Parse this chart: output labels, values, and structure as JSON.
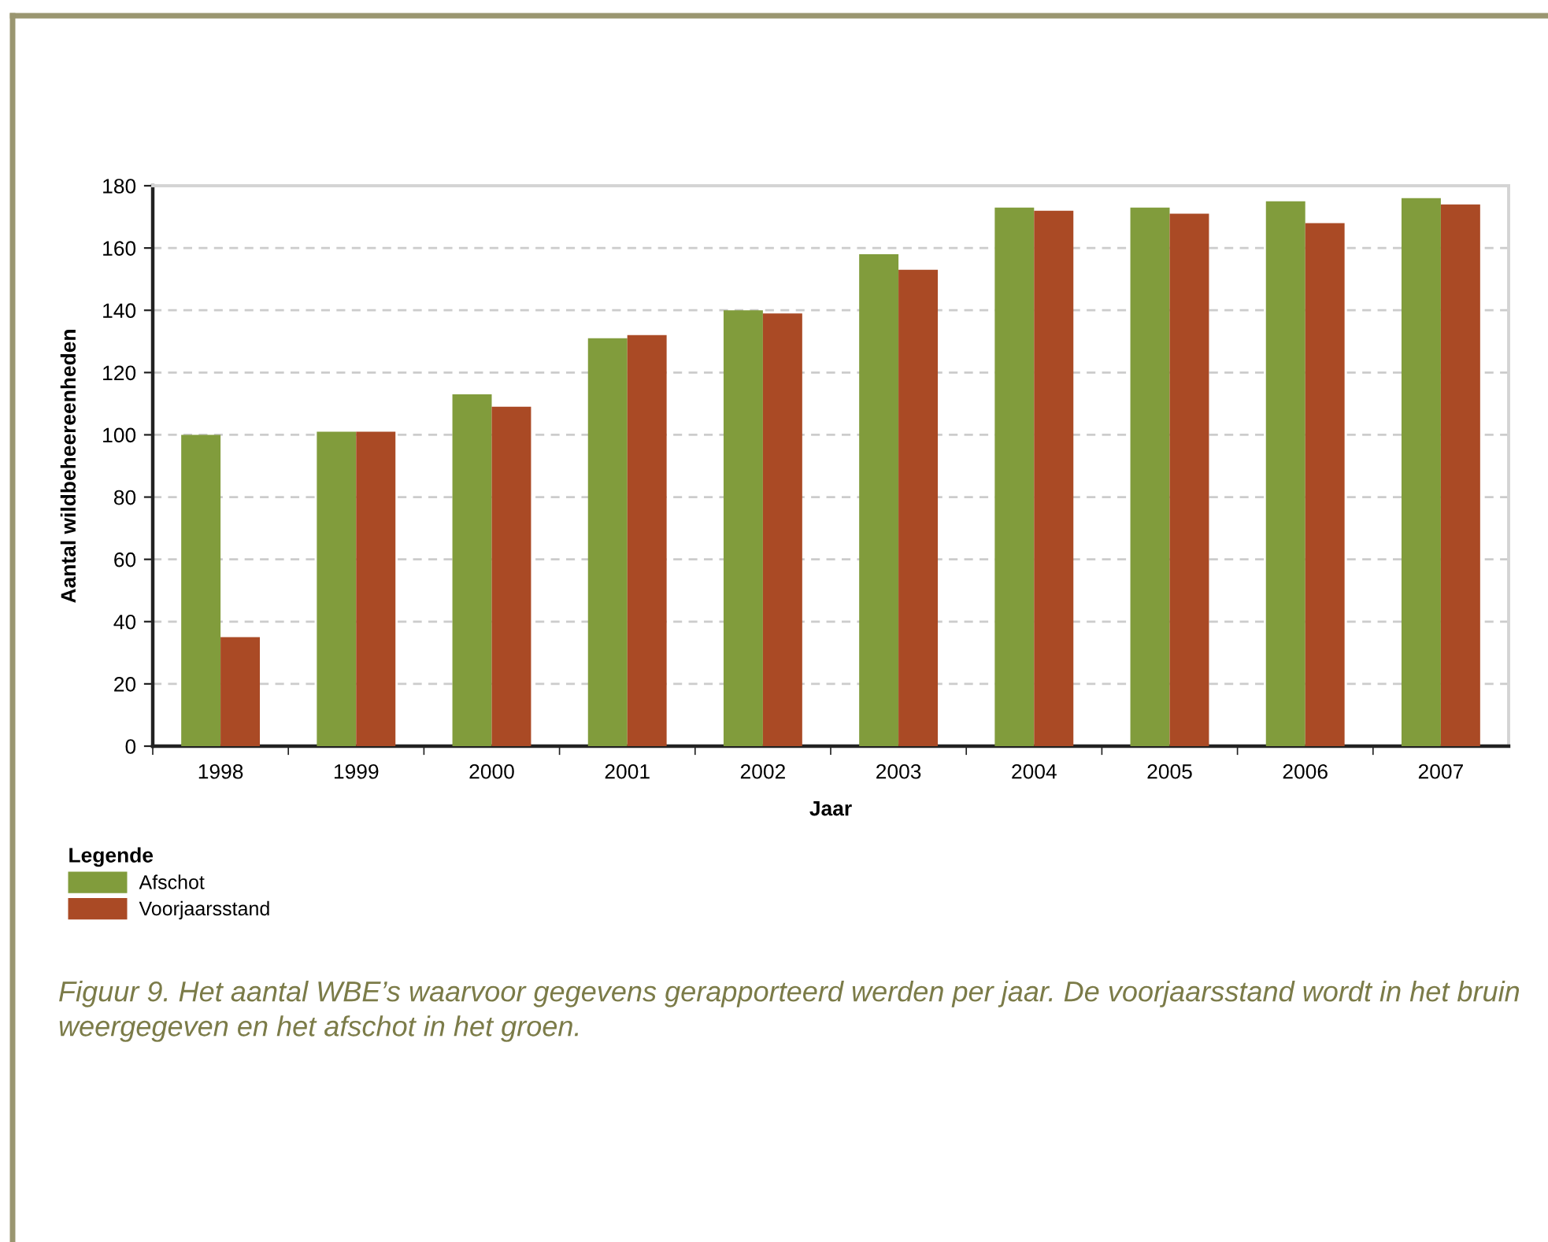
{
  "chart_data": {
    "type": "bar",
    "categories": [
      "1998",
      "1999",
      "2000",
      "2001",
      "2002",
      "2003",
      "2004",
      "2005",
      "2006",
      "2007"
    ],
    "series": [
      {
        "name": "Afschot",
        "color": "#819c3c",
        "values": [
          100,
          101,
          113,
          131,
          140,
          158,
          173,
          173,
          175,
          176
        ]
      },
      {
        "name": "Voorjaarsstand",
        "color": "#aa4a25",
        "values": [
          35,
          101,
          109,
          132,
          139,
          153,
          172,
          171,
          168,
          174
        ]
      }
    ],
    "xlabel": "Jaar",
    "ylabel": "Aantal wildbeheereenheden",
    "ylim": [
      0,
      180
    ],
    "yticks": [
      0,
      20,
      40,
      60,
      80,
      100,
      120,
      140,
      160,
      180
    ],
    "grid": "y",
    "legend": "bottom left",
    "legend_title": "Legende",
    "annotations": [
      "Figuur 9. Het aantal WBE’s waarvoor gegevens gerapporteerd werden per jaar. De voorjaarsstand wordt in het bruin weergegeven en het afschot in het groen."
    ]
  }
}
